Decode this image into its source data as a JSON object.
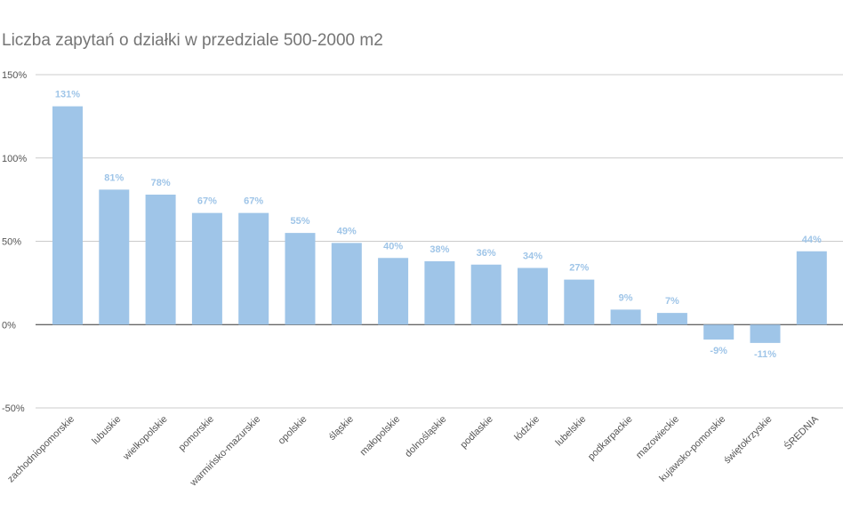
{
  "chart_data": {
    "type": "bar",
    "title": "Liczba zapytań o działki w przedziale 500-2000 m2",
    "xlabel": "",
    "ylabel": "",
    "ylim": [
      -50,
      150
    ],
    "yticks": [
      150,
      100,
      50,
      0,
      -50
    ],
    "ytick_labels": [
      "150%",
      "100%",
      "50%",
      "0%",
      "-50%"
    ],
    "grid": true,
    "bar_color": "#9fc5e8",
    "categories": [
      "zachodniopomorskie",
      "lubuskie",
      "wielkopolskie",
      "pomorskie",
      "warmińsko-mazurskie",
      "opolskie",
      "śląskie",
      "małopolskie",
      "dolnośląskie",
      "podlaskie",
      "łódzkie",
      "lubelskie",
      "podkarpackie",
      "mazowieckie",
      "kujawsko-pomorskie",
      "świętokrzyskie",
      "ŚREDNIA"
    ],
    "values": [
      131,
      81,
      78,
      67,
      67,
      55,
      49,
      40,
      38,
      36,
      34,
      27,
      9,
      7,
      -9,
      -11,
      44
    ],
    "data_labels": [
      "131%",
      "81%",
      "78%",
      "67%",
      "67%",
      "55%",
      "49%",
      "40%",
      "38%",
      "36%",
      "34%",
      "27%",
      "9%",
      "7%",
      "-9%",
      "-11%",
      "44%"
    ]
  }
}
